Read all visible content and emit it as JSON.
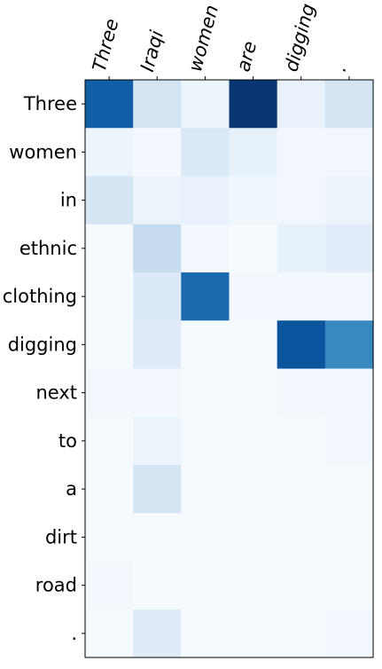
{
  "chart_data": {
    "type": "heatmap",
    "title": "",
    "xlabel": "",
    "ylabel": "",
    "x_labels": [
      "Three",
      "Iraqi",
      "women",
      "are",
      "digging",
      "."
    ],
    "y_labels": [
      "Three",
      "women",
      "in",
      "ethnic",
      "clothing",
      "digging",
      "next",
      "to",
      "a",
      "dirt",
      "road",
      "."
    ],
    "colormap": "Blues",
    "value_range": [
      0,
      1
    ],
    "x_tick_rotation_deg": 75,
    "x_ticks_position": "top",
    "grid": false,
    "values": [
      [
        0.82,
        0.18,
        0.05,
        0.98,
        0.07,
        0.17
      ],
      [
        0.05,
        0.02,
        0.14,
        0.08,
        0.02,
        0.03
      ],
      [
        0.17,
        0.06,
        0.07,
        0.04,
        0.03,
        0.06
      ],
      [
        0.01,
        0.24,
        0.02,
        0.01,
        0.08,
        0.11
      ],
      [
        0.01,
        0.14,
        0.78,
        0.02,
        0.02,
        0.02
      ],
      [
        0.01,
        0.12,
        0.01,
        0.01,
        0.86,
        0.66
      ],
      [
        0.03,
        0.02,
        0.01,
        0.01,
        0.02,
        0.02
      ],
      [
        0.01,
        0.06,
        0.01,
        0.01,
        0.01,
        0.02
      ],
      [
        0.01,
        0.17,
        0.01,
        0.01,
        0.01,
        0.01
      ],
      [
        0.01,
        0.01,
        0.01,
        0.01,
        0.01,
        0.01
      ],
      [
        0.02,
        0.01,
        0.01,
        0.01,
        0.01,
        0.01
      ],
      [
        0.01,
        0.12,
        0.01,
        0.01,
        0.01,
        0.02
      ]
    ]
  }
}
